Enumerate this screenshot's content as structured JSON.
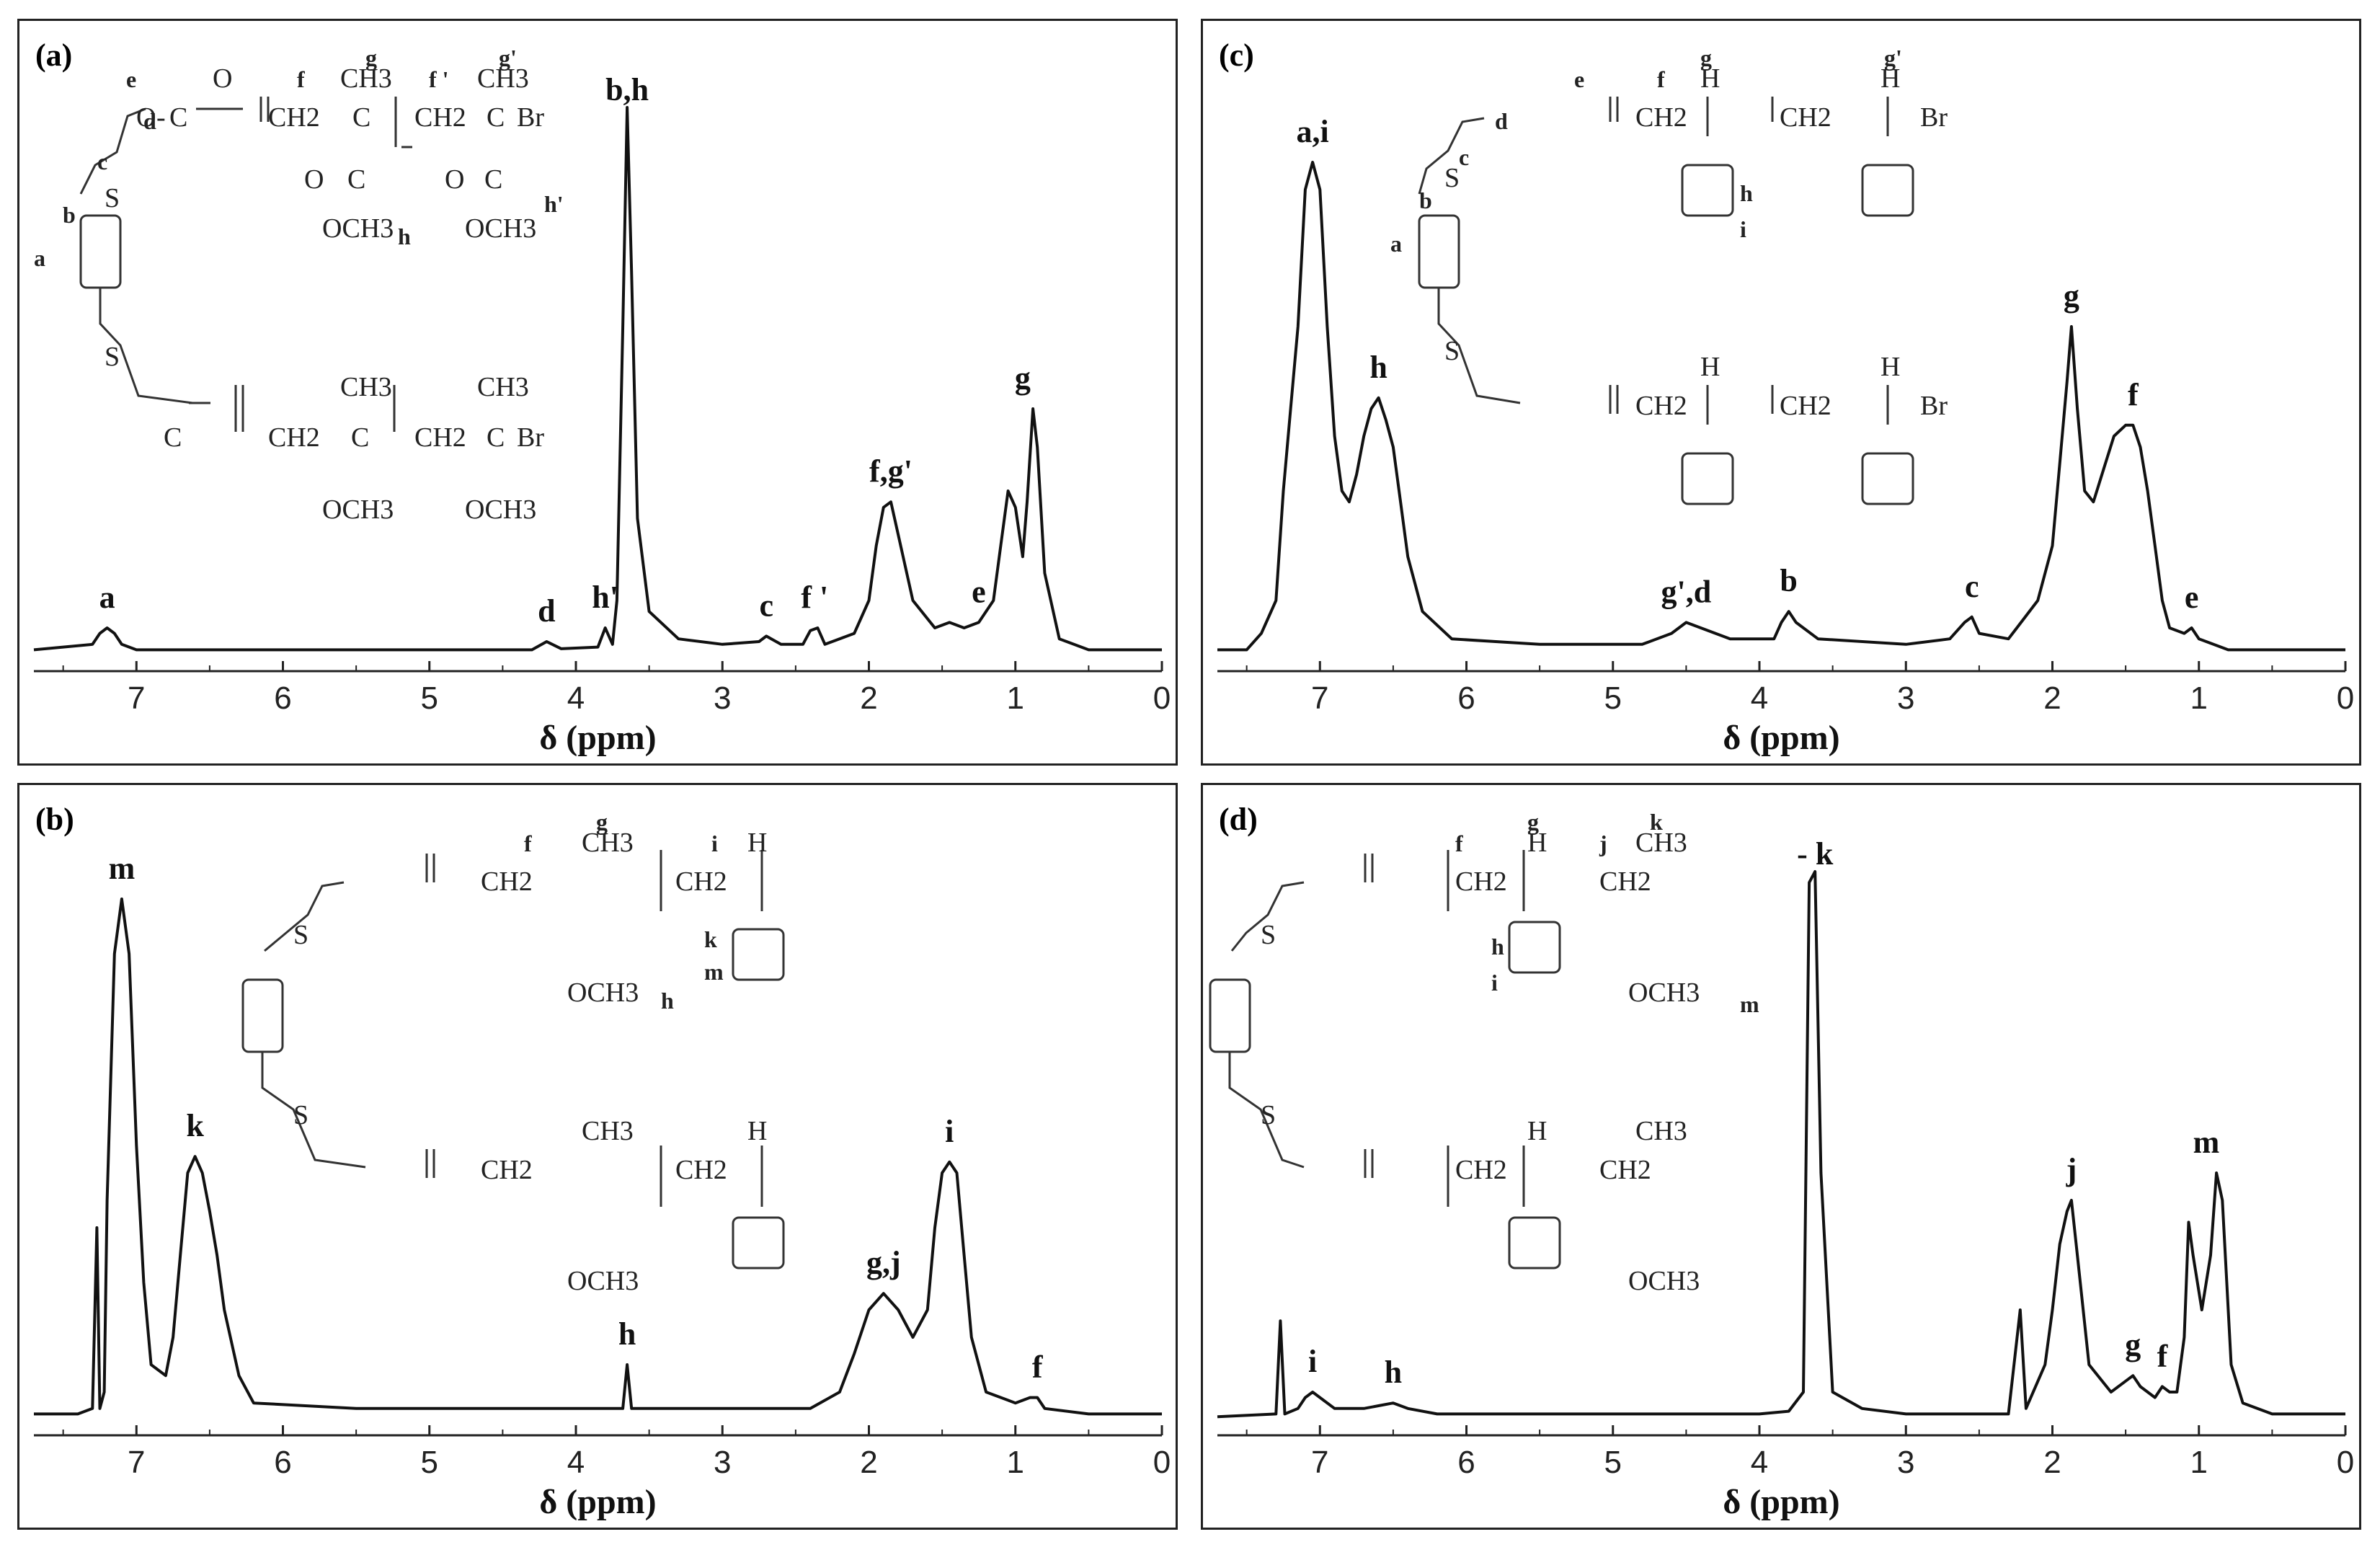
{
  "panels": [
    {
      "id": "a",
      "label": "(a)",
      "xlabel": "δ (ppm)",
      "ticks": [
        "7",
        "6",
        "5",
        "4",
        "3",
        "2",
        "1",
        "0"
      ],
      "xlim": [
        7.7,
        0
      ],
      "ymax": 1.0,
      "spectrum": [
        [
          7.7,
          0.01
        ],
        [
          7.3,
          0.02
        ],
        [
          7.25,
          0.04
        ],
        [
          7.2,
          0.05
        ],
        [
          7.15,
          0.04
        ],
        [
          7.1,
          0.02
        ],
        [
          7.0,
          0.01
        ],
        [
          6.0,
          0.01
        ],
        [
          5.0,
          0.01
        ],
        [
          4.3,
          0.01
        ],
        [
          4.2,
          0.025
        ],
        [
          4.1,
          0.012
        ],
        [
          3.85,
          0.015
        ],
        [
          3.8,
          0.05
        ],
        [
          3.75,
          0.02
        ],
        [
          3.72,
          0.1
        ],
        [
          3.68,
          0.6
        ],
        [
          3.65,
          1.0
        ],
        [
          3.62,
          0.7
        ],
        [
          3.58,
          0.25
        ],
        [
          3.5,
          0.08
        ],
        [
          3.3,
          0.03
        ],
        [
          3.0,
          0.02
        ],
        [
          2.75,
          0.025
        ],
        [
          2.7,
          0.035
        ],
        [
          2.6,
          0.02
        ],
        [
          2.45,
          0.02
        ],
        [
          2.4,
          0.045
        ],
        [
          2.35,
          0.05
        ],
        [
          2.3,
          0.02
        ],
        [
          2.1,
          0.04
        ],
        [
          2.0,
          0.1
        ],
        [
          1.95,
          0.2
        ],
        [
          1.9,
          0.27
        ],
        [
          1.85,
          0.28
        ],
        [
          1.8,
          0.22
        ],
        [
          1.7,
          0.1
        ],
        [
          1.55,
          0.05
        ],
        [
          1.45,
          0.06
        ],
        [
          1.35,
          0.05
        ],
        [
          1.25,
          0.06
        ],
        [
          1.15,
          0.1
        ],
        [
          1.1,
          0.2
        ],
        [
          1.05,
          0.3
        ],
        [
          1.0,
          0.27
        ],
        [
          0.95,
          0.18
        ],
        [
          0.92,
          0.28
        ],
        [
          0.88,
          0.45
        ],
        [
          0.85,
          0.38
        ],
        [
          0.8,
          0.15
        ],
        [
          0.7,
          0.03
        ],
        [
          0.5,
          0.01
        ],
        [
          0.0,
          0.01
        ]
      ],
      "peaks": [
        {
          "label": "a",
          "x": 7.2,
          "y": 0.05
        },
        {
          "label": "d",
          "x": 4.2,
          "y": 0.025
        },
        {
          "label": "h'",
          "x": 3.8,
          "y": 0.05
        },
        {
          "label": "b,h",
          "x": 3.65,
          "y": 1.0
        },
        {
          "label": "c",
          "x": 2.7,
          "y": 0.035
        },
        {
          "label": "f '",
          "x": 2.37,
          "y": 0.05
        },
        {
          "label": "f,g'",
          "x": 1.85,
          "y": 0.28
        },
        {
          "label": "e",
          "x": 1.25,
          "y": 0.06
        },
        {
          "label": "g",
          "x": 0.95,
          "y": 0.45
        }
      ]
    },
    {
      "id": "c",
      "label": "(c)",
      "xlabel": "δ (ppm)",
      "ticks": [
        "7",
        "6",
        "5",
        "4",
        "3",
        "2",
        "1",
        "0"
      ],
      "xlim": [
        7.7,
        0
      ],
      "ymax": 1.0,
      "spectrum": [
        [
          7.7,
          0.01
        ],
        [
          7.5,
          0.01
        ],
        [
          7.4,
          0.04
        ],
        [
          7.3,
          0.1
        ],
        [
          7.25,
          0.3
        ],
        [
          7.2,
          0.45
        ],
        [
          7.15,
          0.6
        ],
        [
          7.1,
          0.85
        ],
        [
          7.05,
          0.9
        ],
        [
          7.0,
          0.85
        ],
        [
          6.95,
          0.6
        ],
        [
          6.9,
          0.4
        ],
        [
          6.85,
          0.3
        ],
        [
          6.8,
          0.28
        ],
        [
          6.75,
          0.33
        ],
        [
          6.7,
          0.4
        ],
        [
          6.65,
          0.45
        ],
        [
          6.6,
          0.47
        ],
        [
          6.55,
          0.43
        ],
        [
          6.5,
          0.38
        ],
        [
          6.45,
          0.28
        ],
        [
          6.4,
          0.18
        ],
        [
          6.3,
          0.08
        ],
        [
          6.1,
          0.03
        ],
        [
          5.5,
          0.02
        ],
        [
          4.8,
          0.02
        ],
        [
          4.6,
          0.04
        ],
        [
          4.5,
          0.06
        ],
        [
          4.4,
          0.05
        ],
        [
          4.2,
          0.03
        ],
        [
          3.9,
          0.03
        ],
        [
          3.85,
          0.06
        ],
        [
          3.8,
          0.08
        ],
        [
          3.75,
          0.06
        ],
        [
          3.6,
          0.03
        ],
        [
          3.0,
          0.02
        ],
        [
          2.7,
          0.03
        ],
        [
          2.6,
          0.06
        ],
        [
          2.55,
          0.07
        ],
        [
          2.5,
          0.04
        ],
        [
          2.3,
          0.03
        ],
        [
          2.1,
          0.1
        ],
        [
          2.0,
          0.2
        ],
        [
          1.95,
          0.35
        ],
        [
          1.9,
          0.5
        ],
        [
          1.87,
          0.6
        ],
        [
          1.83,
          0.45
        ],
        [
          1.78,
          0.3
        ],
        [
          1.72,
          0.28
        ],
        [
          1.65,
          0.34
        ],
        [
          1.58,
          0.4
        ],
        [
          1.5,
          0.42
        ],
        [
          1.45,
          0.42
        ],
        [
          1.4,
          0.38
        ],
        [
          1.35,
          0.3
        ],
        [
          1.3,
          0.2
        ],
        [
          1.25,
          0.1
        ],
        [
          1.2,
          0.05
        ],
        [
          1.1,
          0.04
        ],
        [
          1.05,
          0.05
        ],
        [
          1.0,
          0.03
        ],
        [
          0.8,
          0.01
        ],
        [
          0.5,
          0.01
        ],
        [
          0.0,
          0.01
        ]
      ],
      "peaks": [
        {
          "label": "a,i",
          "x": 7.05,
          "y": 0.9
        },
        {
          "label": "h",
          "x": 6.6,
          "y": 0.47
        },
        {
          "label": "g',d",
          "x": 4.5,
          "y": 0.06
        },
        {
          "label": "b",
          "x": 3.8,
          "y": 0.08
        },
        {
          "label": "c",
          "x": 2.55,
          "y": 0.07
        },
        {
          "label": "g",
          "x": 1.87,
          "y": 0.6
        },
        {
          "label": "f",
          "x": 1.45,
          "y": 0.42
        },
        {
          "label": "e",
          "x": 1.05,
          "y": 0.05
        }
      ]
    },
    {
      "id": "b",
      "label": "(b)",
      "xlabel": "δ (ppm)",
      "ticks": [
        "7",
        "6",
        "5",
        "4",
        "3",
        "2",
        "1",
        "0"
      ],
      "xlim": [
        7.7,
        0
      ],
      "ymax": 1.0,
      "spectrum": [
        [
          7.7,
          0.01
        ],
        [
          7.4,
          0.01
        ],
        [
          7.3,
          0.02
        ],
        [
          7.27,
          0.35
        ],
        [
          7.25,
          0.02
        ],
        [
          7.22,
          0.05
        ],
        [
          7.2,
          0.4
        ],
        [
          7.15,
          0.85
        ],
        [
          7.1,
          0.95
        ],
        [
          7.05,
          0.85
        ],
        [
          7.0,
          0.5
        ],
        [
          6.95,
          0.25
        ],
        [
          6.9,
          0.1
        ],
        [
          6.8,
          0.08
        ],
        [
          6.75,
          0.15
        ],
        [
          6.7,
          0.3
        ],
        [
          6.65,
          0.45
        ],
        [
          6.6,
          0.48
        ],
        [
          6.55,
          0.45
        ],
        [
          6.5,
          0.38
        ],
        [
          6.45,
          0.3
        ],
        [
          6.4,
          0.2
        ],
        [
          6.3,
          0.08
        ],
        [
          6.2,
          0.03
        ],
        [
          5.5,
          0.02
        ],
        [
          4.5,
          0.02
        ],
        [
          3.9,
          0.02
        ],
        [
          3.68,
          0.02
        ],
        [
          3.65,
          0.1
        ],
        [
          3.62,
          0.02
        ],
        [
          3.0,
          0.02
        ],
        [
          2.4,
          0.02
        ],
        [
          2.2,
          0.05
        ],
        [
          2.1,
          0.12
        ],
        [
          2.0,
          0.2
        ],
        [
          1.9,
          0.23
        ],
        [
          1.8,
          0.2
        ],
        [
          1.7,
          0.15
        ],
        [
          1.6,
          0.2
        ],
        [
          1.55,
          0.35
        ],
        [
          1.5,
          0.45
        ],
        [
          1.45,
          0.47
        ],
        [
          1.4,
          0.45
        ],
        [
          1.35,
          0.3
        ],
        [
          1.3,
          0.15
        ],
        [
          1.2,
          0.05
        ],
        [
          1.0,
          0.03
        ],
        [
          0.9,
          0.04
        ],
        [
          0.85,
          0.04
        ],
        [
          0.8,
          0.02
        ],
        [
          0.5,
          0.01
        ],
        [
          0.0,
          0.01
        ]
      ],
      "peaks": [
        {
          "label": "m",
          "x": 7.1,
          "y": 0.95
        },
        {
          "label": "k",
          "x": 6.6,
          "y": 0.48
        },
        {
          "label": "h",
          "x": 3.65,
          "y": 0.1
        },
        {
          "label": "g,j",
          "x": 1.9,
          "y": 0.23
        },
        {
          "label": "i",
          "x": 1.45,
          "y": 0.47
        },
        {
          "label": "f",
          "x": 0.85,
          "y": 0.04
        }
      ]
    },
    {
      "id": "d",
      "label": "(d)",
      "xlabel": "δ (ppm)",
      "ticks": [
        "7",
        "6",
        "5",
        "4",
        "3",
        "2",
        "1",
        "0"
      ],
      "xlim": [
        7.7,
        0
      ],
      "ymax": 1.0,
      "spectrum": [
        [
          7.7,
          0.005
        ],
        [
          7.3,
          0.01
        ],
        [
          7.27,
          0.18
        ],
        [
          7.24,
          0.01
        ],
        [
          7.15,
          0.02
        ],
        [
          7.1,
          0.04
        ],
        [
          7.05,
          0.05
        ],
        [
          7.0,
          0.04
        ],
        [
          6.9,
          0.02
        ],
        [
          6.7,
          0.02
        ],
        [
          6.6,
          0.025
        ],
        [
          6.5,
          0.03
        ],
        [
          6.4,
          0.02
        ],
        [
          6.2,
          0.01
        ],
        [
          5.0,
          0.01
        ],
        [
          4.0,
          0.01
        ],
        [
          3.8,
          0.015
        ],
        [
          3.7,
          0.05
        ],
        [
          3.66,
          0.98
        ],
        [
          3.62,
          1.0
        ],
        [
          3.58,
          0.45
        ],
        [
          3.5,
          0.05
        ],
        [
          3.3,
          0.02
        ],
        [
          3.0,
          0.01
        ],
        [
          2.3,
          0.01
        ],
        [
          2.22,
          0.2
        ],
        [
          2.18,
          0.02
        ],
        [
          2.05,
          0.1
        ],
        [
          2.0,
          0.2
        ],
        [
          1.95,
          0.32
        ],
        [
          1.9,
          0.38
        ],
        [
          1.87,
          0.4
        ],
        [
          1.83,
          0.3
        ],
        [
          1.75,
          0.1
        ],
        [
          1.6,
          0.05
        ],
        [
          1.5,
          0.07
        ],
        [
          1.45,
          0.08
        ],
        [
          1.4,
          0.06
        ],
        [
          1.3,
          0.04
        ],
        [
          1.25,
          0.06
        ],
        [
          1.2,
          0.05
        ],
        [
          1.15,
          0.05
        ],
        [
          1.1,
          0.15
        ],
        [
          1.07,
          0.36
        ],
        [
          1.04,
          0.3
        ],
        [
          0.98,
          0.2
        ],
        [
          0.92,
          0.3
        ],
        [
          0.88,
          0.45
        ],
        [
          0.84,
          0.4
        ],
        [
          0.78,
          0.1
        ],
        [
          0.7,
          0.03
        ],
        [
          0.5,
          0.01
        ],
        [
          0.0,
          0.01
        ]
      ],
      "peaks": [
        {
          "label": "i",
          "x": 7.05,
          "y": 0.05
        },
        {
          "label": "h",
          "x": 6.5,
          "y": 0.03
        },
        {
          "label": "- k",
          "x": 3.62,
          "y": 1.0
        },
        {
          "label": "j",
          "x": 1.87,
          "y": 0.4
        },
        {
          "label": "g",
          "x": 1.45,
          "y": 0.08
        },
        {
          "label": "f",
          "x": 1.25,
          "y": 0.06
        },
        {
          "label": "m",
          "x": 0.95,
          "y": 0.45
        }
      ]
    }
  ],
  "chart_data": [
    {
      "type": "line",
      "title": "(a)",
      "xlabel": "δ (ppm)",
      "xlim": [
        7.7,
        0
      ],
      "peaks": [
        "a",
        "d",
        "h'",
        "b,h",
        "c",
        "f '",
        "f,g'",
        "e",
        "g"
      ]
    },
    {
      "type": "line",
      "title": "(c)",
      "xlabel": "δ (ppm)",
      "xlim": [
        7.7,
        0
      ],
      "peaks": [
        "a,i",
        "h",
        "g',d",
        "b",
        "c",
        "g",
        "f",
        "e"
      ]
    },
    {
      "type": "line",
      "title": "(b)",
      "xlabel": "δ (ppm)",
      "xlim": [
        7.7,
        0
      ],
      "peaks": [
        "m",
        "k",
        "h",
        "g,j",
        "i",
        "f"
      ]
    },
    {
      "type": "line",
      "title": "(d)",
      "xlabel": "δ (ppm)",
      "xlim": [
        7.7,
        0
      ],
      "peaks": [
        "i",
        "h",
        "- k",
        "j",
        "g",
        "f",
        "m"
      ]
    }
  ],
  "structures": {
    "a": {
      "methyl": "CH3",
      "methoxy": "OCH3",
      "bromo": "Br",
      "methylene": "CH2",
      "carbonyl_O": "O",
      "ester_O": "O",
      "carbon": "C",
      "sulfur": "S",
      "letters": [
        "a",
        "b",
        "c",
        "d",
        "e",
        "f",
        "g",
        "f '",
        "g'",
        "h",
        "h'"
      ]
    },
    "c": {
      "hydrogen": "H",
      "methylene": "CH2",
      "bromo": "Br",
      "sulfur": "S",
      "letters": [
        "a",
        "b",
        "c",
        "d",
        "e",
        "f",
        "g",
        "g'",
        "h",
        "i"
      ]
    },
    "b": {
      "methyl": "CH3",
      "methoxy": "OCH3",
      "hydrogen": "H",
      "methylene": "CH2",
      "sulfur": "S",
      "letters": [
        "f",
        "g",
        "h",
        "i",
        "k",
        "m"
      ]
    },
    "d": {
      "methyl": "CH3",
      "methoxy": "OCH3",
      "hydrogen": "H",
      "methylene": "CH2",
      "sulfur": "S",
      "letters": [
        "f",
        "g",
        "h",
        "i",
        "j",
        "k",
        "m"
      ]
    }
  }
}
